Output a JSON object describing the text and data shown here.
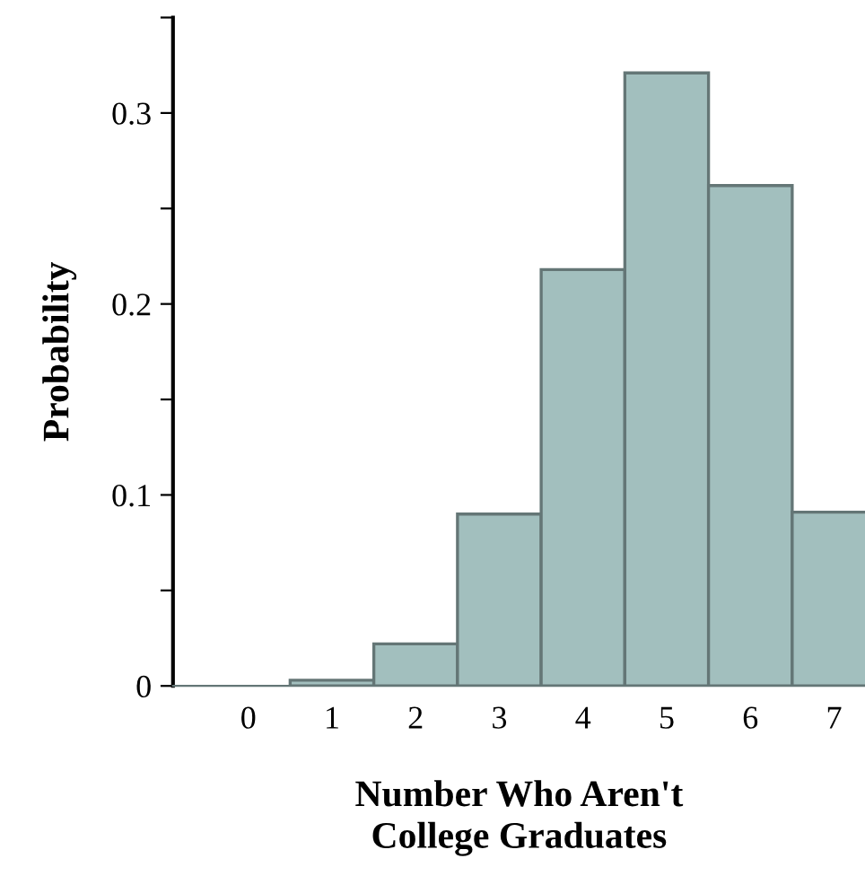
{
  "chart_data": {
    "type": "histogram",
    "xlabel": "Number Who Aren't\nCollege Graduates",
    "ylabel": "Probability",
    "bins": [
      -0.5,
      0.5,
      1.5,
      2.5,
      3.5,
      4.5,
      5.5,
      6.5,
      7.5
    ],
    "values": [
      0,
      0.003,
      0.022,
      0.09,
      0.218,
      0.321,
      0.262,
      0.091
    ],
    "color": "#a2bfbe",
    "xlim": [
      -0.9,
      7.37
    ],
    "ylim": [
      0,
      0.35
    ],
    "xticks": [
      0,
      1,
      2,
      3,
      4,
      5,
      6,
      7
    ],
    "yticks": [
      0,
      {
        "value": 0.05,
        "label": null
      },
      0.1,
      {
        "value": 0.15,
        "label": null
      },
      0.2,
      {
        "value": 0.25,
        "label": null
      },
      0.3,
      {
        "value": 0.35,
        "label": null
      }
    ],
    "grid": false,
    "legend": false
  }
}
